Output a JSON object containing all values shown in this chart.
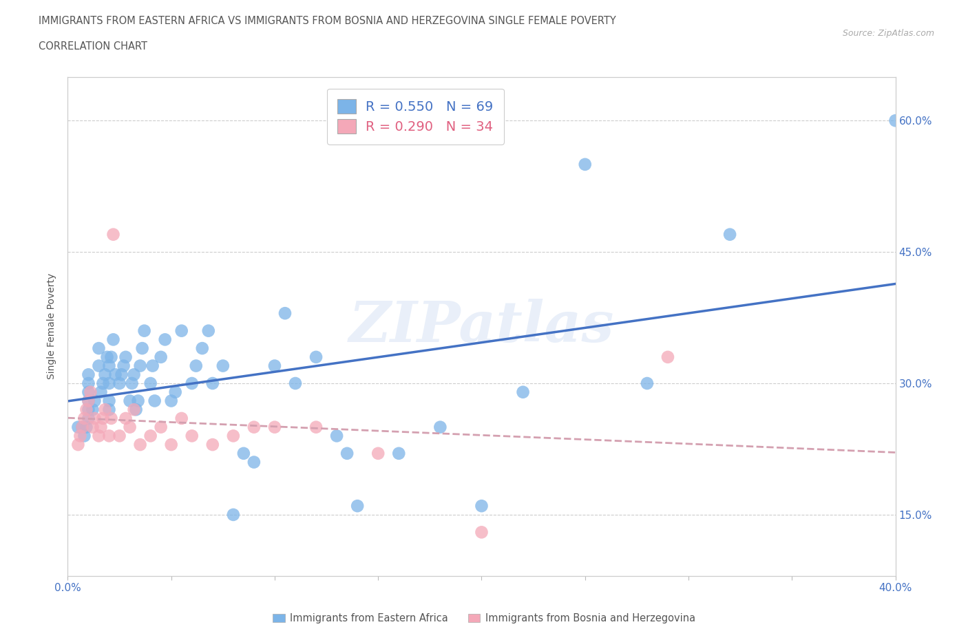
{
  "title_line1": "IMMIGRANTS FROM EASTERN AFRICA VS IMMIGRANTS FROM BOSNIA AND HERZEGOVINA SINGLE FEMALE POVERTY",
  "title_line2": "CORRELATION CHART",
  "source": "Source: ZipAtlas.com",
  "ylabel": "Single Female Poverty",
  "xlim": [
    0.0,
    0.4
  ],
  "ylim": [
    0.08,
    0.65
  ],
  "yticks": [
    0.15,
    0.3,
    0.45,
    0.6
  ],
  "ytick_labels": [
    "15.0%",
    "30.0%",
    "45.0%",
    "60.0%"
  ],
  "xticks": [
    0.0,
    0.05,
    0.1,
    0.15,
    0.2,
    0.25,
    0.3,
    0.35,
    0.4
  ],
  "xtick_left_label": "0.0%",
  "xtick_right_label": "40.0%",
  "blue_R": 0.55,
  "blue_N": 69,
  "pink_R": 0.29,
  "pink_N": 34,
  "blue_color": "#7cb4e8",
  "pink_color": "#f4a8b8",
  "blue_line_color": "#4472c4",
  "pink_line_color": "#d4a0b0",
  "legend_blue_text_color": "#4472c4",
  "legend_pink_text_color": "#e06080",
  "watermark": "ZIPatlas",
  "blue_scatter_x": [
    0.005,
    0.007,
    0.008,
    0.009,
    0.01,
    0.01,
    0.01,
    0.01,
    0.01,
    0.01,
    0.012,
    0.013,
    0.015,
    0.015,
    0.016,
    0.017,
    0.018,
    0.019,
    0.02,
    0.02,
    0.02,
    0.02,
    0.021,
    0.022,
    0.023,
    0.025,
    0.026,
    0.027,
    0.028,
    0.03,
    0.031,
    0.032,
    0.033,
    0.034,
    0.035,
    0.036,
    0.037,
    0.04,
    0.041,
    0.042,
    0.045,
    0.047,
    0.05,
    0.052,
    0.055,
    0.06,
    0.062,
    0.065,
    0.068,
    0.07,
    0.075,
    0.08,
    0.085,
    0.09,
    0.1,
    0.105,
    0.11,
    0.12,
    0.13,
    0.135,
    0.14,
    0.16,
    0.18,
    0.2,
    0.22,
    0.25,
    0.28,
    0.32,
    0.4
  ],
  "blue_scatter_y": [
    0.25,
    0.25,
    0.24,
    0.25,
    0.26,
    0.27,
    0.28,
    0.29,
    0.3,
    0.31,
    0.27,
    0.28,
    0.32,
    0.34,
    0.29,
    0.3,
    0.31,
    0.33,
    0.27,
    0.28,
    0.3,
    0.32,
    0.33,
    0.35,
    0.31,
    0.3,
    0.31,
    0.32,
    0.33,
    0.28,
    0.3,
    0.31,
    0.27,
    0.28,
    0.32,
    0.34,
    0.36,
    0.3,
    0.32,
    0.28,
    0.33,
    0.35,
    0.28,
    0.29,
    0.36,
    0.3,
    0.32,
    0.34,
    0.36,
    0.3,
    0.32,
    0.15,
    0.22,
    0.21,
    0.32,
    0.38,
    0.3,
    0.33,
    0.24,
    0.22,
    0.16,
    0.22,
    0.25,
    0.16,
    0.29,
    0.55,
    0.3,
    0.47,
    0.6
  ],
  "pink_scatter_x": [
    0.005,
    0.006,
    0.007,
    0.008,
    0.009,
    0.01,
    0.011,
    0.012,
    0.013,
    0.015,
    0.016,
    0.017,
    0.018,
    0.02,
    0.021,
    0.022,
    0.025,
    0.028,
    0.03,
    0.032,
    0.035,
    0.04,
    0.045,
    0.05,
    0.055,
    0.06,
    0.07,
    0.08,
    0.09,
    0.1,
    0.12,
    0.15,
    0.2,
    0.29
  ],
  "pink_scatter_y": [
    0.23,
    0.24,
    0.25,
    0.26,
    0.27,
    0.28,
    0.29,
    0.25,
    0.26,
    0.24,
    0.25,
    0.26,
    0.27,
    0.24,
    0.26,
    0.47,
    0.24,
    0.26,
    0.25,
    0.27,
    0.23,
    0.24,
    0.25,
    0.23,
    0.26,
    0.24,
    0.23,
    0.24,
    0.25,
    0.25,
    0.25,
    0.22,
    0.13,
    0.33
  ]
}
